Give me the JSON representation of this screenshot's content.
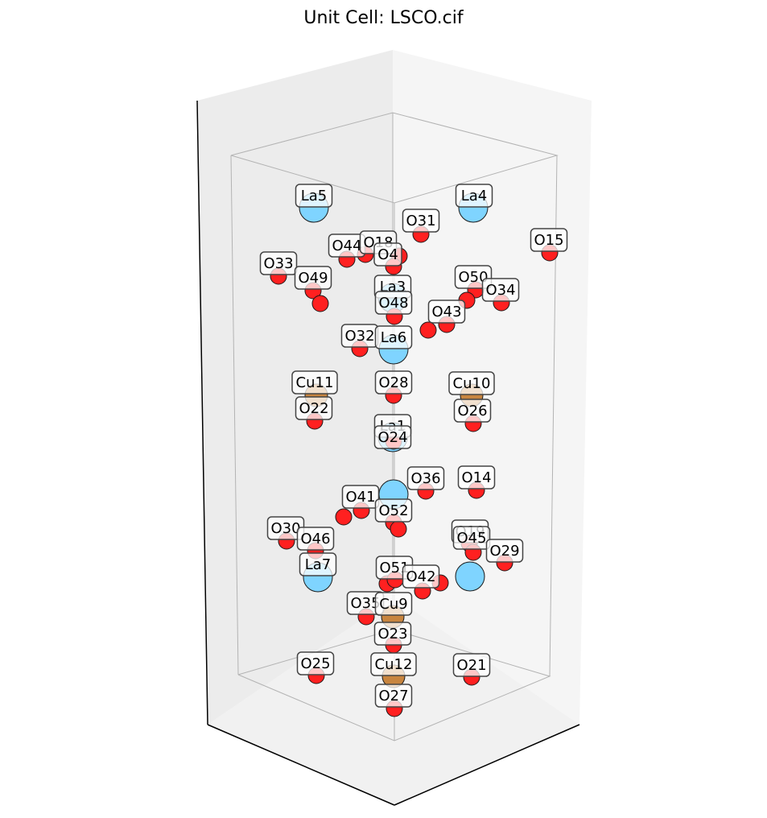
{
  "title": "Unit Cell: LSCO.cif",
  "colors": {
    "La": "#7fd4ff",
    "Cu": "#c8853f",
    "O": "#ff2020",
    "atom_stroke": "#1a1a1a",
    "label_bg": "#ffffff",
    "label_border": "#444444",
    "pane_left": "#ececec",
    "pane_right": "#f5f5f5",
    "pane_floor": "#f0f0f0",
    "cell_edge": "#b3b3b3"
  },
  "labels": [
    {
      "text": "La5"
    },
    {
      "text": "La4"
    },
    {
      "text": "O31"
    },
    {
      "text": "O15"
    },
    {
      "text": "O44"
    },
    {
      "text": "O18"
    },
    {
      "text": "O4"
    },
    {
      "text": "O33"
    },
    {
      "text": "O49"
    },
    {
      "text": "La3"
    },
    {
      "text": "O50"
    },
    {
      "text": "O34"
    },
    {
      "text": "O48"
    },
    {
      "text": "O43"
    },
    {
      "text": "O32"
    },
    {
      "text": "La6"
    },
    {
      "text": "Cu11"
    },
    {
      "text": "O28"
    },
    {
      "text": "Cu10"
    },
    {
      "text": "O22"
    },
    {
      "text": "O26"
    },
    {
      "text": "La1"
    },
    {
      "text": "O24"
    },
    {
      "text": "O36"
    },
    {
      "text": "O14"
    },
    {
      "text": "O41"
    },
    {
      "text": "O52"
    },
    {
      "text": "O30"
    },
    {
      "text": "O46"
    },
    {
      "text": "O19"
    },
    {
      "text": "O45"
    },
    {
      "text": "O29"
    },
    {
      "text": "La7"
    },
    {
      "text": "O51"
    },
    {
      "text": "O42"
    },
    {
      "text": "O35"
    },
    {
      "text": "Cu9"
    },
    {
      "text": "O23"
    },
    {
      "text": "O25"
    },
    {
      "text": "Cu12"
    },
    {
      "text": "O21"
    },
    {
      "text": "O27"
    }
  ]
}
